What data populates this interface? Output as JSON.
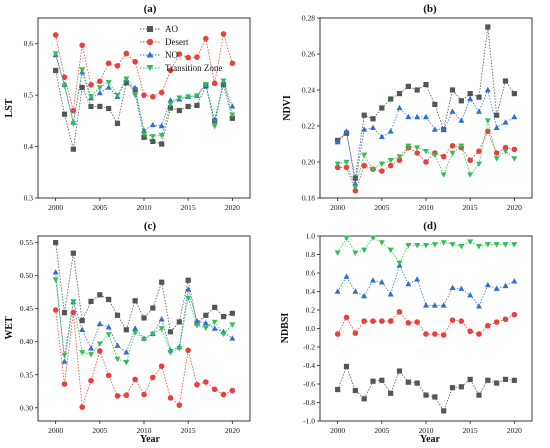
{
  "colors": {
    "AO": "#555555",
    "Desert": "#e8413b",
    "NO": "#2f6fd1",
    "Transition Zone": "#2fbf55"
  },
  "chart_data": [
    {
      "type": "line",
      "panel": "(a)",
      "ylabel": "LST",
      "xlabel": "",
      "x": [
        2000,
        2001,
        2002,
        2003,
        2004,
        2005,
        2006,
        2007,
        2008,
        2009,
        2010,
        2011,
        2012,
        2013,
        2014,
        2015,
        2016,
        2017,
        2018,
        2019,
        2020
      ],
      "xticks": [
        "2000",
        "2005",
        "2010",
        "2015",
        "2020"
      ],
      "xlim": [
        1998,
        2022
      ],
      "ylim": [
        0.3,
        0.65
      ],
      "yticks": [
        "0.3",
        "0.4",
        "0.5",
        "0.6"
      ],
      "legend": {
        "position": "top-right",
        "entries": [
          "AO",
          "Desert",
          "NO",
          "Transition Zone"
        ]
      },
      "series": [
        {
          "name": "AO",
          "values": [
            0.548,
            0.463,
            0.395,
            0.515,
            0.478,
            0.478,
            0.474,
            0.445,
            0.524,
            0.51,
            0.418,
            0.41,
            0.405,
            0.475,
            0.47,
            0.478,
            0.48,
            0.518,
            0.45,
            0.52,
            0.455
          ]
        },
        {
          "name": "Desert",
          "values": [
            0.617,
            0.535,
            0.47,
            0.597,
            0.52,
            0.527,
            0.562,
            0.557,
            0.581,
            0.565,
            0.5,
            0.497,
            0.505,
            0.548,
            0.58,
            0.573,
            0.574,
            0.61,
            0.523,
            0.619,
            0.562
          ]
        },
        {
          "name": "NO",
          "values": [
            0.578,
            0.52,
            0.447,
            0.545,
            0.494,
            0.504,
            0.515,
            0.497,
            0.53,
            0.514,
            0.431,
            0.442,
            0.44,
            0.49,
            0.492,
            0.497,
            0.499,
            0.52,
            0.452,
            0.526,
            0.478
          ]
        },
        {
          "name": "Transition Zone",
          "values": [
            0.581,
            0.518,
            0.445,
            0.55,
            0.498,
            0.515,
            0.525,
            0.5,
            0.532,
            0.5,
            0.424,
            0.42,
            0.422,
            0.483,
            0.495,
            0.497,
            0.499,
            0.521,
            0.44,
            0.528,
            0.462
          ]
        }
      ]
    },
    {
      "type": "line",
      "panel": "(b)",
      "ylabel": "NDVI",
      "xlabel": "",
      "x": [
        2000,
        2001,
        2002,
        2003,
        2004,
        2005,
        2006,
        2007,
        2008,
        2009,
        2010,
        2011,
        2012,
        2013,
        2014,
        2015,
        2016,
        2017,
        2018,
        2019,
        2020
      ],
      "xticks": [
        "2000",
        "2005",
        "2010",
        "2015",
        "2020"
      ],
      "xlim": [
        1998,
        2022
      ],
      "ylim": [
        0.18,
        0.28
      ],
      "yticks": [
        "0.18",
        "0.20",
        "0.22",
        "0.24",
        "0.26",
        "0.28"
      ],
      "series": [
        {
          "name": "AO",
          "values": [
            0.212,
            0.216,
            0.191,
            0.226,
            0.224,
            0.23,
            0.235,
            0.238,
            0.242,
            0.24,
            0.243,
            0.232,
            0.218,
            0.24,
            0.234,
            0.238,
            0.236,
            0.275,
            0.226,
            0.245,
            0.238
          ]
        },
        {
          "name": "Desert",
          "values": [
            0.197,
            0.197,
            0.184,
            0.198,
            0.196,
            0.195,
            0.198,
            0.201,
            0.208,
            0.205,
            0.2,
            0.205,
            0.203,
            0.209,
            0.208,
            0.201,
            0.206,
            0.217,
            0.205,
            0.208,
            0.207
          ]
        },
        {
          "name": "NO",
          "values": [
            0.211,
            0.217,
            0.188,
            0.218,
            0.219,
            0.214,
            0.217,
            0.23,
            0.225,
            0.225,
            0.225,
            0.218,
            0.218,
            0.228,
            0.223,
            0.235,
            0.228,
            0.24,
            0.219,
            0.222,
            0.225
          ]
        },
        {
          "name": "Transition Zone",
          "values": [
            0.199,
            0.2,
            0.186,
            0.204,
            0.196,
            0.199,
            0.201,
            0.203,
            0.209,
            0.208,
            0.206,
            0.204,
            0.193,
            0.205,
            0.209,
            0.193,
            0.199,
            0.223,
            0.202,
            0.206,
            0.202
          ]
        }
      ]
    },
    {
      "type": "line",
      "panel": "(c)",
      "ylabel": "WET",
      "xlabel": "Year",
      "x": [
        2000,
        2001,
        2002,
        2003,
        2004,
        2005,
        2006,
        2007,
        2008,
        2009,
        2010,
        2011,
        2012,
        2013,
        2014,
        2015,
        2016,
        2017,
        2018,
        2019,
        2020
      ],
      "xticks": [
        "2000",
        "2005",
        "2010",
        "2015",
        "2020"
      ],
      "xlim": [
        1998,
        2022
      ],
      "ylim": [
        0.28,
        0.56
      ],
      "yticks": [
        "0.30",
        "0.35",
        "0.40",
        "0.45",
        "0.50",
        "0.55"
      ],
      "series": [
        {
          "name": "AO",
          "values": [
            0.55,
            0.444,
            0.534,
            0.432,
            0.461,
            0.471,
            0.464,
            0.44,
            0.418,
            0.462,
            0.436,
            0.451,
            0.49,
            0.415,
            0.43,
            0.493,
            0.428,
            0.44,
            0.452,
            0.438,
            0.443
          ]
        },
        {
          "name": "Desert",
          "values": [
            0.448,
            0.336,
            0.444,
            0.301,
            0.341,
            0.386,
            0.349,
            0.318,
            0.319,
            0.343,
            0.32,
            0.346,
            0.363,
            0.315,
            0.304,
            0.387,
            0.335,
            0.339,
            0.328,
            0.32,
            0.326
          ]
        },
        {
          "name": "NO",
          "values": [
            0.505,
            0.37,
            0.46,
            0.418,
            0.39,
            0.427,
            0.422,
            0.394,
            0.384,
            0.42,
            0.405,
            0.412,
            0.434,
            0.387,
            0.392,
            0.479,
            0.431,
            0.428,
            0.42,
            0.415,
            0.405
          ]
        },
        {
          "name": "Transition Zone",
          "values": [
            0.494,
            0.38,
            0.461,
            0.384,
            0.381,
            0.397,
            0.411,
            0.374,
            0.369,
            0.414,
            0.404,
            0.412,
            0.42,
            0.384,
            0.39,
            0.466,
            0.425,
            0.421,
            0.43,
            0.412,
            0.426
          ]
        }
      ]
    },
    {
      "type": "line",
      "panel": "(d)",
      "ylabel": "NDBSI",
      "xlabel": "Year",
      "x": [
        2000,
        2001,
        2002,
        2003,
        2004,
        2005,
        2006,
        2007,
        2008,
        2009,
        2010,
        2011,
        2012,
        2013,
        2014,
        2015,
        2016,
        2017,
        2018,
        2019,
        2020
      ],
      "xticks": [
        "2000",
        "2005",
        "2010",
        "2015",
        "2020"
      ],
      "xlim": [
        1998,
        2022
      ],
      "ylim": [
        -1.0,
        1.0
      ],
      "yticks": [
        "-1.0",
        "-0.8",
        "-0.6",
        "-0.4",
        "-0.2",
        "0.0",
        "0.2",
        "0.4",
        "0.6",
        "0.8",
        "1.0"
      ],
      "series": [
        {
          "name": "AO",
          "values": [
            -0.66,
            -0.41,
            -0.67,
            -0.76,
            -0.57,
            -0.56,
            -0.7,
            -0.46,
            -0.58,
            -0.59,
            -0.72,
            -0.74,
            -0.89,
            -0.64,
            -0.63,
            -0.55,
            -0.72,
            -0.56,
            -0.59,
            -0.55,
            -0.56
          ]
        },
        {
          "name": "Desert",
          "values": [
            -0.06,
            0.12,
            -0.05,
            0.08,
            0.08,
            0.08,
            0.08,
            0.18,
            0.06,
            0.07,
            -0.06,
            -0.06,
            -0.07,
            0.09,
            0.08,
            -0.03,
            -0.06,
            0.03,
            0.07,
            0.1,
            0.15
          ]
        },
        {
          "name": "NO",
          "values": [
            0.4,
            0.56,
            0.4,
            0.35,
            0.52,
            0.5,
            0.37,
            0.68,
            0.48,
            0.53,
            0.25,
            0.25,
            0.25,
            0.44,
            0.43,
            0.36,
            0.24,
            0.47,
            0.43,
            0.46,
            0.51
          ]
        },
        {
          "name": "Transition Zone",
          "values": [
            0.82,
            0.98,
            0.82,
            0.85,
            0.98,
            0.93,
            0.85,
            0.71,
            0.9,
            0.9,
            0.9,
            0.91,
            0.93,
            0.91,
            0.89,
            0.94,
            0.89,
            0.91,
            0.91,
            0.91,
            0.91
          ]
        }
      ]
    }
  ]
}
